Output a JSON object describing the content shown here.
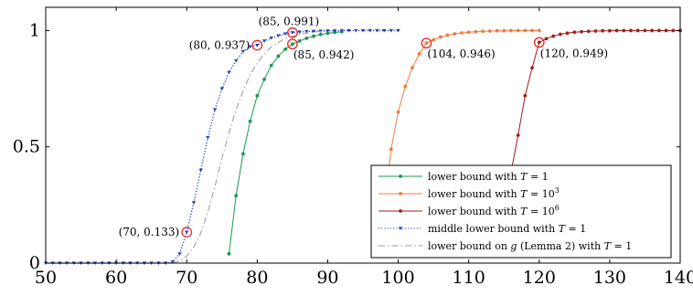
{
  "chart_data": {
    "type": "line",
    "xlim": [
      50,
      140
    ],
    "ylim": [
      0,
      1.1
    ],
    "x_ticks": [
      "50",
      "60",
      "70",
      "80",
      "90",
      "100",
      "110",
      "120",
      "130",
      "140"
    ],
    "y_ticks": [
      "0",
      "0.5",
      "1"
    ],
    "grid": false,
    "legend_position": "bottom-right",
    "series": [
      {
        "name": "lower bound with T = 1",
        "legend": {
          "pre": "lower bound with ",
          "var": "T",
          "post": " = 1",
          "sup": ""
        },
        "color": "#1a9850",
        "style": "solid",
        "marker": "circle",
        "points": [
          [
            76,
            0.04
          ],
          [
            77,
            0.29
          ],
          [
            78,
            0.47
          ],
          [
            79,
            0.61
          ],
          [
            80,
            0.72
          ],
          [
            81,
            0.79
          ],
          [
            82,
            0.85
          ],
          [
            83,
            0.89
          ],
          [
            84,
            0.92
          ],
          [
            85,
            0.942
          ],
          [
            86,
            0.955
          ],
          [
            87,
            0.967
          ],
          [
            88,
            0.976
          ],
          [
            89,
            0.983
          ],
          [
            90,
            0.988
          ],
          [
            91,
            0.992
          ],
          [
            92,
            0.995
          ]
        ]
      },
      {
        "name": "lower bound with T = 10^3",
        "legend": {
          "pre": "lower bound with ",
          "var": "T",
          "post": " = 10",
          "sup": "3"
        },
        "color": "#f07b3f",
        "style": "solid",
        "marker": "circle",
        "points": [
          [
            97.5,
            0.09
          ],
          [
            98,
            0.24
          ],
          [
            99,
            0.49
          ],
          [
            100,
            0.65
          ],
          [
            101,
            0.76
          ],
          [
            102,
            0.84
          ],
          [
            103,
            0.9
          ],
          [
            104,
            0.946
          ],
          [
            105,
            0.96
          ],
          [
            106,
            0.972
          ],
          [
            107,
            0.98
          ],
          [
            108,
            0.986
          ],
          [
            109,
            0.99
          ],
          [
            110,
            0.993
          ],
          [
            111,
            0.995
          ],
          [
            112,
            0.997
          ],
          [
            113,
            0.998
          ],
          [
            114,
            0.999
          ],
          [
            115,
            0.999
          ],
          [
            116,
            1.0
          ],
          [
            117,
            1.0
          ],
          [
            118,
            1.0
          ],
          [
            119,
            1.0
          ],
          [
            120,
            1.0
          ]
        ]
      },
      {
        "name": "lower bound with T = 10^6",
        "legend": {
          "pre": "lower bound with ",
          "var": "T",
          "post": " = 10",
          "sup": "6"
        },
        "color": "#a11d1d",
        "style": "solid",
        "marker": "circle",
        "points": [
          [
            115,
            0.1
          ],
          [
            116,
            0.39
          ],
          [
            117,
            0.55
          ],
          [
            118,
            0.72
          ],
          [
            119,
            0.84
          ],
          [
            120,
            0.949
          ],
          [
            121,
            0.965
          ],
          [
            122,
            0.976
          ],
          [
            123,
            0.984
          ],
          [
            124,
            0.989
          ],
          [
            125,
            0.993
          ],
          [
            126,
            0.995
          ],
          [
            127,
            0.997
          ],
          [
            128,
            0.998
          ],
          [
            129,
            0.999
          ],
          [
            130,
            0.999
          ],
          [
            131,
            1.0
          ],
          [
            132,
            1.0
          ],
          [
            133,
            1.0
          ],
          [
            134,
            1.0
          ],
          [
            135,
            1.0
          ],
          [
            136,
            1.0
          ],
          [
            137,
            1.0
          ],
          [
            138,
            1.0
          ],
          [
            139,
            1.0
          ],
          [
            140,
            1.0
          ]
        ]
      },
      {
        "name": "middle lower bound with T = 1",
        "legend": {
          "pre": "middle lower bound with ",
          "var": "T",
          "post": " = 1",
          "sup": ""
        },
        "color": "#1f3fbf",
        "style": "dotted",
        "marker": "triangle",
        "points": [
          [
            50,
            0.0
          ],
          [
            51,
            0.0
          ],
          [
            52,
            0.0
          ],
          [
            53,
            0.0
          ],
          [
            54,
            0.0
          ],
          [
            55,
            0.0
          ],
          [
            56,
            0.0
          ],
          [
            57,
            0.0
          ],
          [
            58,
            0.0
          ],
          [
            59,
            0.0
          ],
          [
            60,
            0.0
          ],
          [
            61,
            0.0
          ],
          [
            62,
            0.0
          ],
          [
            63,
            0.0
          ],
          [
            64,
            0.0
          ],
          [
            65,
            0.0
          ],
          [
            66,
            0.0
          ],
          [
            67,
            0.0
          ],
          [
            68,
            0.005
          ],
          [
            69,
            0.04
          ],
          [
            70,
            0.133
          ],
          [
            71,
            0.26
          ],
          [
            72,
            0.4
          ],
          [
            73,
            0.54
          ],
          [
            74,
            0.66
          ],
          [
            75,
            0.75
          ],
          [
            76,
            0.82
          ],
          [
            77,
            0.87
          ],
          [
            78,
            0.91
          ],
          [
            79,
            0.93
          ],
          [
            80,
            0.937
          ],
          [
            81,
            0.955
          ],
          [
            82,
            0.968
          ],
          [
            83,
            0.978
          ],
          [
            84,
            0.986
          ],
          [
            85,
            0.991
          ],
          [
            86,
            0.994
          ],
          [
            87,
            0.996
          ],
          [
            88,
            0.997
          ],
          [
            89,
            0.998
          ],
          [
            90,
            0.999
          ],
          [
            91,
            0.999
          ],
          [
            92,
            1.0
          ],
          [
            93,
            1.0
          ],
          [
            94,
            1.0
          ],
          [
            95,
            1.0
          ],
          [
            96,
            1.0
          ],
          [
            97,
            1.0
          ],
          [
            98,
            1.0
          ],
          [
            99,
            1.0
          ],
          [
            100,
            1.0
          ]
        ]
      },
      {
        "name": "lower bound on g (Lemma 2) with T = 1",
        "legend": {
          "pre": "lower bound on ",
          "var": "g",
          "post": " (Lemma 2) with ",
          "var2": "T",
          "post2": " = 1",
          "sup": ""
        },
        "color": "#999999",
        "style": "dashdot",
        "marker": "none",
        "points": [
          [
            68,
            0.0
          ],
          [
            69,
            0.01
          ],
          [
            70,
            0.03
          ],
          [
            71,
            0.07
          ],
          [
            72,
            0.13
          ],
          [
            73,
            0.22
          ],
          [
            74,
            0.33
          ],
          [
            75,
            0.45
          ],
          [
            76,
            0.56
          ],
          [
            77,
            0.66
          ],
          [
            78,
            0.74
          ],
          [
            79,
            0.81
          ],
          [
            80,
            0.86
          ],
          [
            81,
            0.9
          ],
          [
            82,
            0.93
          ],
          [
            83,
            0.95
          ],
          [
            84,
            0.965
          ],
          [
            85,
            0.975
          ],
          [
            86,
            0.983
          ],
          [
            87,
            0.989
          ],
          [
            88,
            0.993
          ],
          [
            89,
            0.996
          ],
          [
            90,
            0.998
          ]
        ]
      }
    ],
    "annotations": [
      {
        "x": 70,
        "y": 0.133,
        "text": "(70, 0.133)",
        "anchor": "left"
      },
      {
        "x": 80,
        "y": 0.937,
        "text": "(80, 0.937)",
        "anchor": "left"
      },
      {
        "x": 85,
        "y": 0.991,
        "text": "(85, 0.991)",
        "anchor": "above"
      },
      {
        "x": 85,
        "y": 0.942,
        "text": "(85, 0.942)",
        "anchor": "below-right"
      },
      {
        "x": 104,
        "y": 0.946,
        "text": "(104, 0.946)",
        "anchor": "below-right"
      },
      {
        "x": 120,
        "y": 0.949,
        "text": "(120, 0.949)",
        "anchor": "below-right"
      }
    ]
  }
}
